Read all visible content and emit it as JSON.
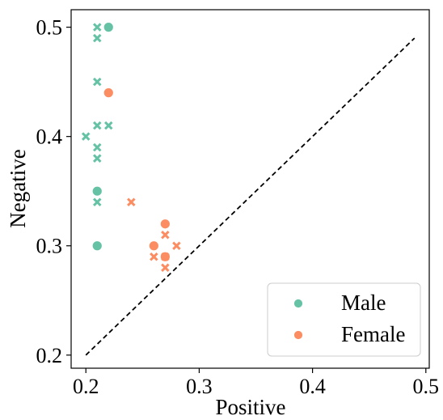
{
  "chart_data": {
    "type": "scatter",
    "title": "",
    "xlabel": "Positive",
    "ylabel": "Negative",
    "xlim": [
      0.187,
      0.503
    ],
    "ylim": [
      0.188,
      0.516
    ],
    "xticks": [
      0.2,
      0.3,
      0.4,
      0.5
    ],
    "yticks": [
      0.2,
      0.3,
      0.4,
      0.5
    ],
    "xtick_labels": [
      "0.2",
      "0.3",
      "0.4",
      "0.5"
    ],
    "ytick_labels": [
      "0.2",
      "0.3",
      "0.4",
      "0.5"
    ],
    "grid": false,
    "legend": {
      "placement": "bottom-right",
      "entries": [
        {
          "name": "Male",
          "color": "#66c2a5"
        },
        {
          "name": "Female",
          "color": "#fc8d62"
        }
      ]
    },
    "reference_line": {
      "style": "dashed",
      "color": "#000000",
      "x": [
        0.2,
        0.49
      ],
      "y": [
        0.2,
        0.49
      ]
    },
    "series": [
      {
        "name": "Male",
        "color": "#66c2a5",
        "points": [
          {
            "x": 0.22,
            "y": 0.5,
            "marker": "circle"
          },
          {
            "x": 0.21,
            "y": 0.35,
            "marker": "circle"
          },
          {
            "x": 0.21,
            "y": 0.3,
            "marker": "circle"
          },
          {
            "x": 0.21,
            "y": 0.5,
            "marker": "x"
          },
          {
            "x": 0.21,
            "y": 0.49,
            "marker": "x"
          },
          {
            "x": 0.21,
            "y": 0.45,
            "marker": "x"
          },
          {
            "x": 0.21,
            "y": 0.41,
            "marker": "x"
          },
          {
            "x": 0.22,
            "y": 0.41,
            "marker": "x"
          },
          {
            "x": 0.2,
            "y": 0.4,
            "marker": "x"
          },
          {
            "x": 0.21,
            "y": 0.39,
            "marker": "x"
          },
          {
            "x": 0.21,
            "y": 0.38,
            "marker": "x"
          },
          {
            "x": 0.21,
            "y": 0.34,
            "marker": "x"
          }
        ]
      },
      {
        "name": "Female",
        "color": "#fc8d62",
        "points": [
          {
            "x": 0.22,
            "y": 0.44,
            "marker": "circle"
          },
          {
            "x": 0.27,
            "y": 0.32,
            "marker": "circle"
          },
          {
            "x": 0.26,
            "y": 0.3,
            "marker": "circle"
          },
          {
            "x": 0.27,
            "y": 0.29,
            "marker": "circle"
          },
          {
            "x": 0.24,
            "y": 0.34,
            "marker": "x"
          },
          {
            "x": 0.27,
            "y": 0.31,
            "marker": "x"
          },
          {
            "x": 0.28,
            "y": 0.3,
            "marker": "x"
          },
          {
            "x": 0.26,
            "y": 0.29,
            "marker": "x"
          },
          {
            "x": 0.27,
            "y": 0.29,
            "marker": "x"
          },
          {
            "x": 0.27,
            "y": 0.28,
            "marker": "x"
          }
        ]
      }
    ]
  }
}
